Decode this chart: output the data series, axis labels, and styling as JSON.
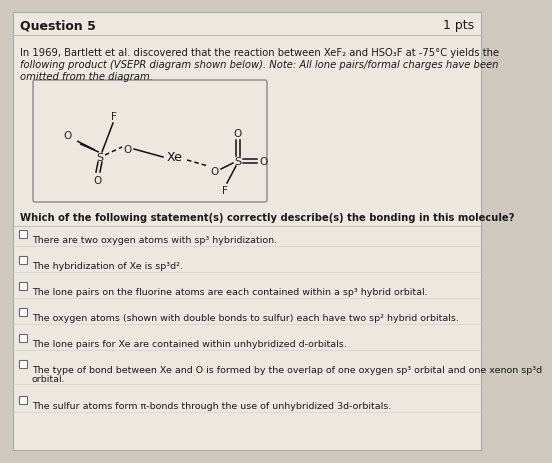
{
  "bg_color": "#cec8be",
  "panel_color": "#ede8df",
  "title": "Question 5",
  "pts": "1 pts",
  "paragraph1": "In 1969, Bartlett et al. discovered that the reaction between XeF₂ and HSO₃F at -75°C yields the",
  "paragraph2": "following product (VSEPR diagram shown below). Note: All lone pairs/formal charges have been",
  "paragraph3": "omitted from the diagram.",
  "question": "Which of the following statement(s) correctly describe(s) the bonding in this molecule?",
  "options": [
    "There are two oxygen atoms with sp³ hybridization.",
    "The hybridization of Xe is sp³d².",
    "The lone pairs on the fluorine atoms are each contained within a sp³ hybrid orbital.",
    "The oxygen atoms (shown with double bonds to sulfur) each have two sp² hybrid orbitals.",
    "The lone pairs for Xe are contained within unhybridized d-orbitals.",
    "The type of bond between Xe and O is formed by the overlap of one oxygen sp³ orbital and one xenon sp³d orbital.",
    "The sulfur atoms form π-bonds through the use of unhybridized 3d-orbitals."
  ],
  "option6_line2": "orbital.",
  "title_fontsize": 9,
  "body_fontsize": 7.2,
  "small_fontsize": 6.8
}
